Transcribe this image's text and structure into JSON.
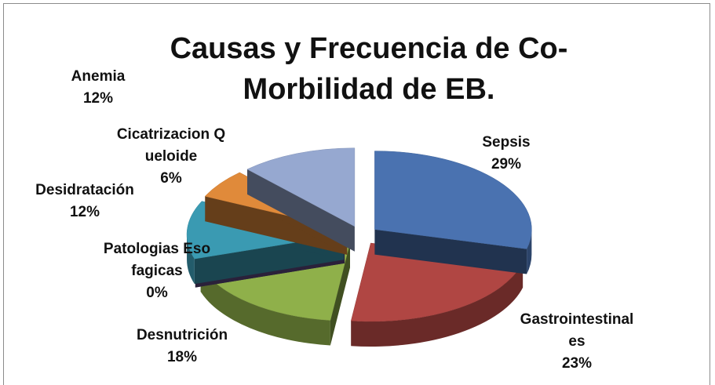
{
  "chart_data": {
    "type": "pie3d",
    "title": "Causas y Frecuencia de Co-Morbilidad de EB.",
    "categories": [
      "Sepsis",
      "Gastrointestinales",
      "Desnutrición",
      "Patologias Esofagicas",
      "Desidratación",
      "Cicatrizacion Queloide",
      "Anemia"
    ],
    "values": [
      29,
      23,
      18,
      0,
      12,
      6,
      12
    ],
    "value_labels": [
      "29%",
      "23%",
      "18%",
      "0%",
      "12%",
      "6%",
      "12%"
    ],
    "colors": [
      "#4a72b0",
      "#b04643",
      "#8fb04a",
      "#5e4a80",
      "#3a9ab2",
      "#e08a3a",
      "#96a8d0"
    ]
  }
}
